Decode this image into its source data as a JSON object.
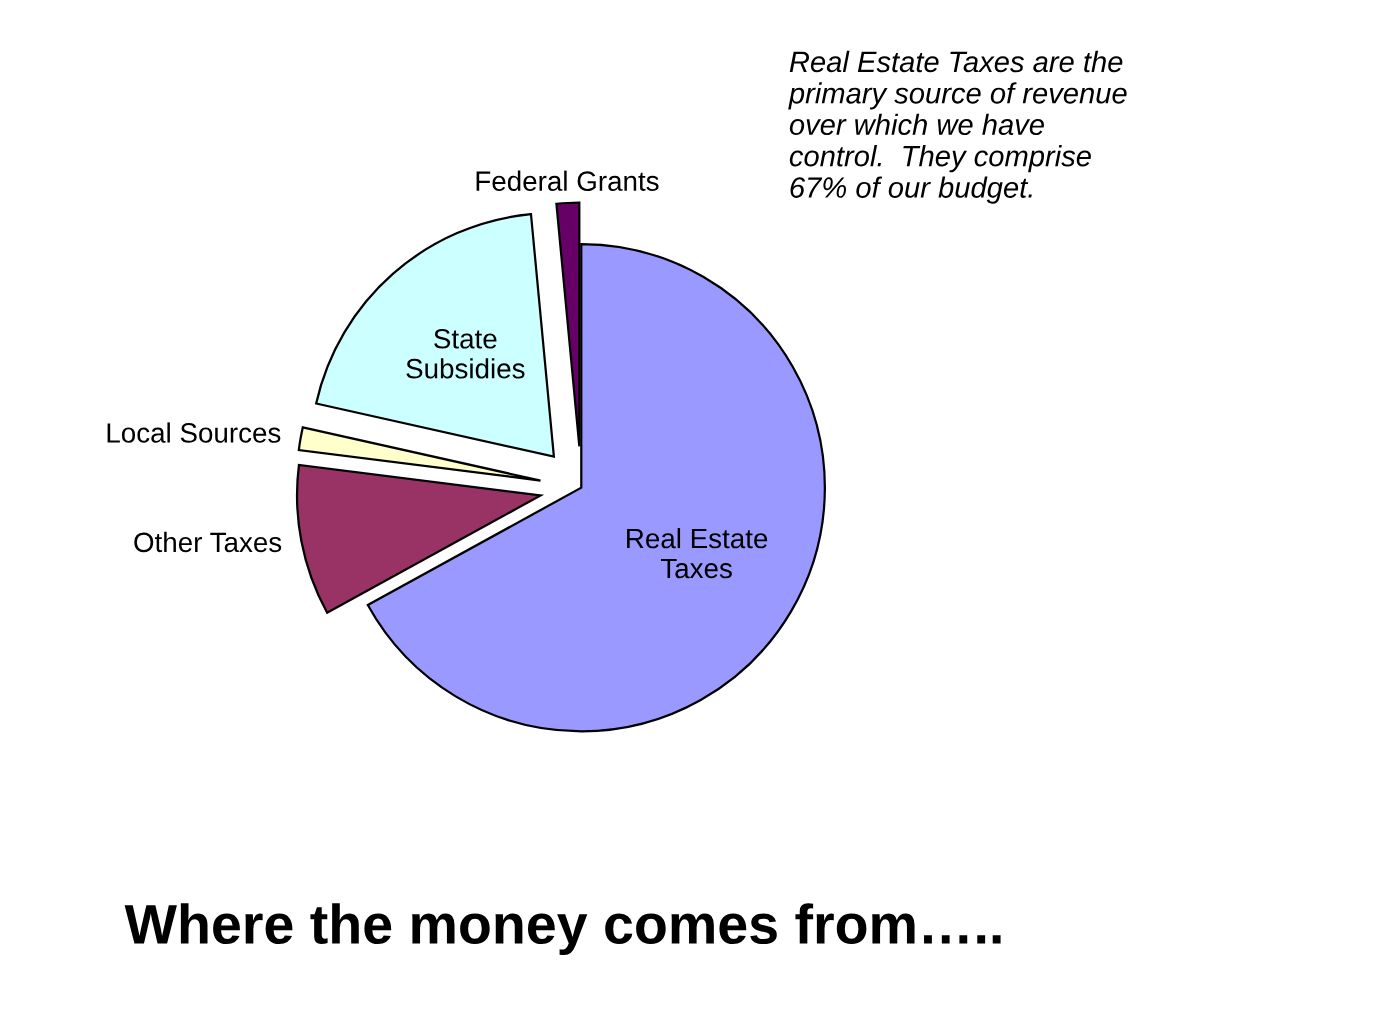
{
  "chart_data": {
    "type": "pie",
    "title": "Where the money comes from…..",
    "categories": [
      "Real Estate\nTaxes",
      "Other Taxes",
      "Local Sources",
      "State\nSubsidies",
      "Federal Grants"
    ],
    "values": [
      67,
      10,
      1.5,
      20,
      1.5
    ],
    "colors": [
      "#9999ff",
      "#993366",
      "#ffffcc",
      "#ccffff",
      "#660066"
    ],
    "annotations": [
      "Real Estate Taxes are the\nprimary source of revenue\nover which we have\ncontrol.  They comprise\n67% of our budget."
    ],
    "legend": false
  }
}
